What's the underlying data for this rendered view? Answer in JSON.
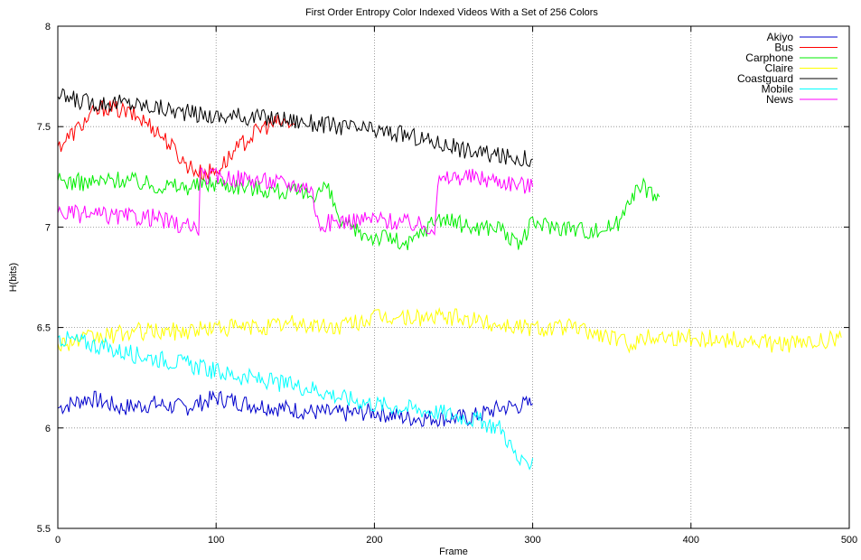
{
  "chart_data": {
    "type": "line",
    "title": "First Order Entropy Color Indexed Videos With a Set of 256 Colors",
    "xlabel": "Frame",
    "ylabel": "H(bits)",
    "xlim": [
      0,
      500
    ],
    "ylim": [
      5.5,
      8
    ],
    "xticks": [
      "0",
      "100",
      "200",
      "300",
      "400",
      "500"
    ],
    "yticks": [
      "5.5",
      "6",
      "6.5",
      "7",
      "7.5",
      "8"
    ],
    "grid": true,
    "legend_position": "top-right",
    "series": [
      {
        "name": "Akiyo",
        "color": "#0000cc",
        "x": [
          0,
          20,
          40,
          60,
          80,
          100,
          120,
          140,
          160,
          180,
          200,
          220,
          240,
          260,
          280,
          300
        ],
        "y": [
          6.1,
          6.15,
          6.1,
          6.12,
          6.1,
          6.15,
          6.12,
          6.1,
          6.08,
          6.07,
          6.08,
          6.05,
          6.05,
          6.05,
          6.1,
          6.12
        ]
      },
      {
        "name": "Bus",
        "color": "#ff0000",
        "x": [
          0,
          10,
          20,
          30,
          40,
          50,
          60,
          70,
          80,
          90,
          100,
          110,
          120,
          130,
          140,
          150
        ],
        "y": [
          7.4,
          7.47,
          7.55,
          7.6,
          7.58,
          7.55,
          7.5,
          7.42,
          7.32,
          7.27,
          7.28,
          7.36,
          7.44,
          7.5,
          7.52,
          7.51
        ]
      },
      {
        "name": "Carphone",
        "color": "#00ee00",
        "x": [
          0,
          20,
          40,
          60,
          80,
          100,
          120,
          140,
          160,
          170,
          180,
          200,
          210,
          220,
          240,
          260,
          280,
          290,
          300,
          320,
          340,
          355,
          360,
          370,
          380
        ],
        "y": [
          7.23,
          7.22,
          7.24,
          7.21,
          7.2,
          7.22,
          7.2,
          7.18,
          7.16,
          7.2,
          7.0,
          6.95,
          6.95,
          6.9,
          7.05,
          7.0,
          7.0,
          6.9,
          7.02,
          7.0,
          6.98,
          7.02,
          7.15,
          7.2,
          7.15
        ]
      },
      {
        "name": "Claire",
        "color": "#ffff00",
        "x": [
          0,
          25,
          50,
          75,
          100,
          125,
          150,
          175,
          200,
          225,
          250,
          275,
          300,
          325,
          350,
          360,
          375,
          400,
          425,
          450,
          475,
          495
        ],
        "y": [
          6.42,
          6.45,
          6.48,
          6.48,
          6.5,
          6.5,
          6.52,
          6.5,
          6.55,
          6.55,
          6.55,
          6.52,
          6.5,
          6.5,
          6.45,
          6.42,
          6.46,
          6.45,
          6.44,
          6.42,
          6.42,
          6.45
        ]
      },
      {
        "name": "Coastguard",
        "color": "#000000",
        "x": [
          0,
          20,
          40,
          60,
          80,
          100,
          120,
          140,
          160,
          180,
          200,
          220,
          240,
          260,
          280,
          300
        ],
        "y": [
          7.65,
          7.62,
          7.62,
          7.6,
          7.57,
          7.55,
          7.55,
          7.54,
          7.52,
          7.5,
          7.48,
          7.46,
          7.42,
          7.38,
          7.35,
          7.34
        ]
      },
      {
        "name": "Mobile",
        "color": "#00ffff",
        "x": [
          0,
          20,
          40,
          60,
          80,
          100,
          120,
          140,
          160,
          180,
          200,
          220,
          240,
          260,
          280,
          290,
          295,
          300
        ],
        "y": [
          6.45,
          6.42,
          6.38,
          6.35,
          6.32,
          6.28,
          6.25,
          6.22,
          6.2,
          6.15,
          6.12,
          6.1,
          6.08,
          6.05,
          6.0,
          5.85,
          5.8,
          5.85
        ]
      },
      {
        "name": "News",
        "color": "#ff00ff",
        "x": [
          0,
          20,
          40,
          60,
          80,
          89,
          90,
          100,
          120,
          140,
          160,
          165,
          170,
          180,
          200,
          220,
          238,
          240,
          250,
          260,
          280,
          300
        ],
        "y": [
          7.07,
          7.06,
          7.05,
          7.05,
          7.0,
          7.0,
          7.25,
          7.25,
          7.24,
          7.22,
          7.2,
          7.0,
          7.02,
          7.03,
          7.04,
          7.02,
          7.0,
          7.22,
          7.25,
          7.25,
          7.23,
          7.2
        ]
      }
    ]
  }
}
